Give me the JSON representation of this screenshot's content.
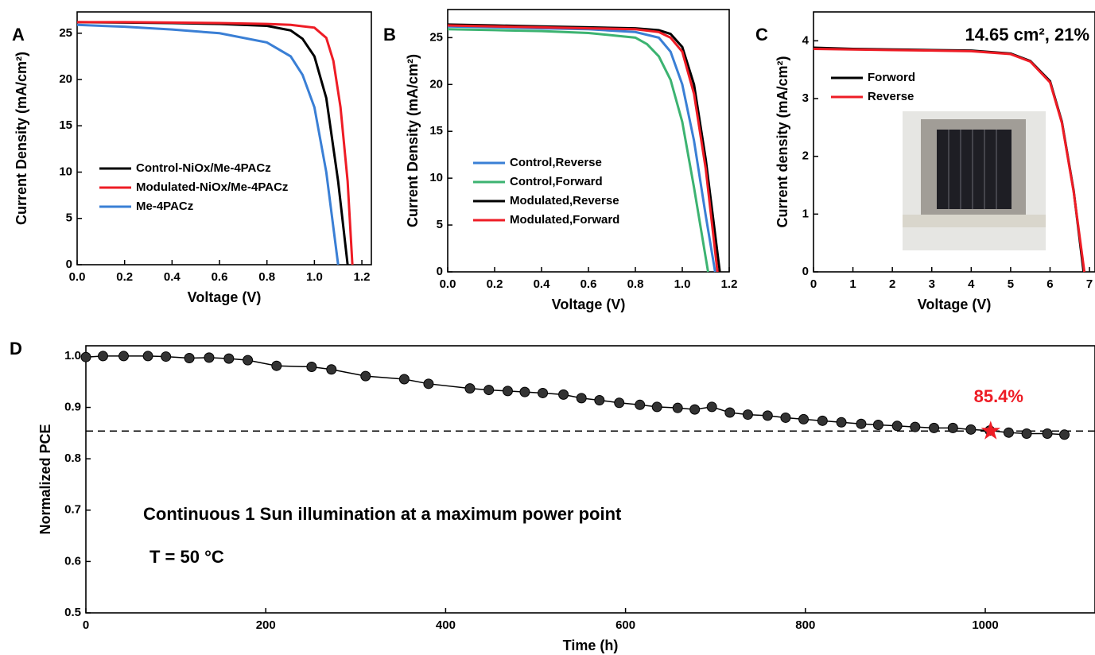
{
  "chart_data": [
    {
      "type": "line",
      "panel": "A",
      "xlabel": "Voltage (V)",
      "ylabel": "Current Density (mA/cm²)",
      "xlim": [
        0,
        1.24
      ],
      "ylim": [
        0,
        27.3
      ],
      "xticks": [
        {
          "value": 0,
          "label": "0.0"
        },
        0.2,
        0.4,
        0.6,
        0.8,
        {
          "value": 1,
          "label": "1.0"
        },
        1.2
      ],
      "yticks": [
        0,
        5,
        10,
        15,
        20,
        25
      ],
      "grid": false,
      "legend": "center-left",
      "series": [
        {
          "name": "Control-NiOx/Me-4PACz",
          "color": "#000000",
          "x": [
            0,
            0.2,
            0.4,
            0.6,
            0.8,
            0.9,
            0.95,
            1.0,
            1.05,
            1.1,
            1.14
          ],
          "values": [
            26.2,
            26.15,
            26.1,
            26.0,
            25.8,
            25.3,
            24.4,
            22.5,
            18,
            9,
            0
          ]
        },
        {
          "name": "Modulated-NiOx/Me-4PACz",
          "color": "#ee1c25",
          "x": [
            0,
            0.2,
            0.4,
            0.6,
            0.8,
            0.9,
            1.0,
            1.05,
            1.08,
            1.11,
            1.14,
            1.16
          ],
          "values": [
            26.2,
            26.2,
            26.15,
            26.1,
            26.0,
            25.9,
            25.6,
            24.5,
            22,
            17,
            9,
            0
          ]
        },
        {
          "name": "Me-4PACz",
          "color": "#3a7fd5",
          "x": [
            0,
            0.2,
            0.4,
            0.6,
            0.8,
            0.9,
            0.95,
            1.0,
            1.05,
            1.08,
            1.1
          ],
          "values": [
            25.9,
            25.7,
            25.4,
            25.0,
            24.0,
            22.5,
            20.5,
            17,
            10,
            4,
            0
          ]
        }
      ]
    },
    {
      "type": "line",
      "panel": "B",
      "xlabel": "Voltage (V)",
      "ylabel": "Current Density (mA/cm²)",
      "xlim": [
        0,
        1.2
      ],
      "ylim": [
        0,
        28
      ],
      "xticks": [
        {
          "value": 0,
          "label": "0.0"
        },
        0.2,
        0.4,
        0.6,
        0.8,
        {
          "value": 1,
          "label": "1.0"
        },
        1.2
      ],
      "yticks": [
        0,
        5,
        10,
        15,
        20,
        25
      ],
      "grid": false,
      "legend": "lower-left",
      "series": [
        {
          "name": "Control,Reverse",
          "color": "#3a7fd5",
          "x": [
            0,
            0.2,
            0.4,
            0.6,
            0.8,
            0.9,
            0.95,
            1.0,
            1.05,
            1.1,
            1.14
          ],
          "values": [
            26.2,
            26.1,
            26.0,
            25.9,
            25.6,
            25.0,
            23.5,
            20,
            14,
            6,
            0
          ]
        },
        {
          "name": "Control,Forward",
          "color": "#3cb371",
          "x": [
            0,
            0.2,
            0.4,
            0.6,
            0.8,
            0.85,
            0.9,
            0.95,
            1.0,
            1.05,
            1.11
          ],
          "values": [
            25.9,
            25.8,
            25.7,
            25.5,
            25.0,
            24.3,
            23,
            20.5,
            16,
            9,
            0
          ]
        },
        {
          "name": "Modulated,Reverse",
          "color": "#000000",
          "x": [
            0,
            0.2,
            0.4,
            0.6,
            0.8,
            0.9,
            0.95,
            1.0,
            1.05,
            1.1,
            1.16
          ],
          "values": [
            26.4,
            26.3,
            26.2,
            26.1,
            26.0,
            25.8,
            25.4,
            24,
            20,
            12,
            0
          ]
        },
        {
          "name": "Modulated,Forward",
          "color": "#ee1c25",
          "x": [
            0,
            0.2,
            0.4,
            0.6,
            0.8,
            0.9,
            0.95,
            1.0,
            1.05,
            1.1,
            1.15
          ],
          "values": [
            26.3,
            26.2,
            26.1,
            26.0,
            25.9,
            25.6,
            25,
            23.5,
            19,
            11,
            0
          ]
        }
      ]
    },
    {
      "type": "line",
      "panel": "C",
      "xlabel": "Voltage (V)",
      "ylabel": "Current density (mA/cm²)",
      "annotation": "14.65 cm², 21%",
      "xlim": [
        0,
        7.14
      ],
      "ylim": [
        0,
        4.5
      ],
      "xticks": [
        0,
        1,
        2,
        3,
        4,
        5,
        6,
        7
      ],
      "yticks": [
        0,
        1,
        2,
        3,
        4
      ],
      "grid": false,
      "legend": "upper-left",
      "series": [
        {
          "name": "Forword",
          "color": "#000000",
          "x": [
            0,
            1,
            2,
            3,
            4,
            5,
            5.5,
            6,
            6.3,
            6.6,
            6.85
          ],
          "values": [
            3.88,
            3.86,
            3.85,
            3.84,
            3.83,
            3.78,
            3.65,
            3.3,
            2.6,
            1.4,
            0
          ]
        },
        {
          "name": "Reverse",
          "color": "#ee1c25",
          "x": [
            0,
            1,
            2,
            3,
            4,
            5,
            5.5,
            6,
            6.3,
            6.6,
            6.87
          ],
          "values": [
            3.86,
            3.85,
            3.84,
            3.83,
            3.82,
            3.77,
            3.64,
            3.28,
            2.58,
            1.38,
            0
          ]
        }
      ]
    },
    {
      "type": "line",
      "panel": "D",
      "xlabel": "Time (h)",
      "ylabel": "Normalized PCE",
      "annotations": [
        "Continuous 1 Sun illumination at a maximum power point",
        "T = 50 °C"
      ],
      "xlim": [
        0,
        1122
      ],
      "ylim": [
        0.5,
        1.02
      ],
      "xticks": [
        0,
        200,
        400,
        600,
        800,
        1000
      ],
      "yticks": [
        0.5,
        0.6,
        0.7,
        0.8,
        0.9,
        {
          "value": 1,
          "label": "1.0"
        }
      ],
      "grid": false,
      "color": "#000000",
      "markers": true,
      "x": [
        0,
        19,
        42,
        69,
        89,
        115,
        137,
        159,
        180,
        212,
        251,
        273,
        311,
        354,
        381,
        427,
        448,
        469,
        488,
        508,
        531,
        551,
        571,
        593,
        616,
        635,
        658,
        677,
        696,
        716,
        736,
        758,
        778,
        798,
        819,
        840,
        862,
        881,
        902,
        922,
        943,
        964,
        984,
        1005,
        1026,
        1046,
        1069,
        1088
      ],
      "values": [
        0.998,
        1.0,
        1.0,
        1.0,
        0.999,
        0.996,
        0.997,
        0.995,
        0.992,
        0.981,
        0.979,
        0.974,
        0.961,
        0.955,
        0.946,
        0.937,
        0.934,
        0.932,
        0.93,
        0.928,
        0.925,
        0.918,
        0.914,
        0.909,
        0.905,
        0.901,
        0.899,
        0.896,
        0.901,
        0.89,
        0.886,
        0.884,
        0.88,
        0.877,
        0.874,
        0.871,
        0.868,
        0.866,
        0.864,
        0.862,
        0.86,
        0.86,
        0.857,
        0.855,
        0.851,
        0.849,
        0.849,
        0.847
      ],
      "reference_line": 0.854,
      "marker": {
        "x": 1006,
        "y": 0.854,
        "label": "85.4%",
        "color": "#ee1c25"
      }
    }
  ]
}
